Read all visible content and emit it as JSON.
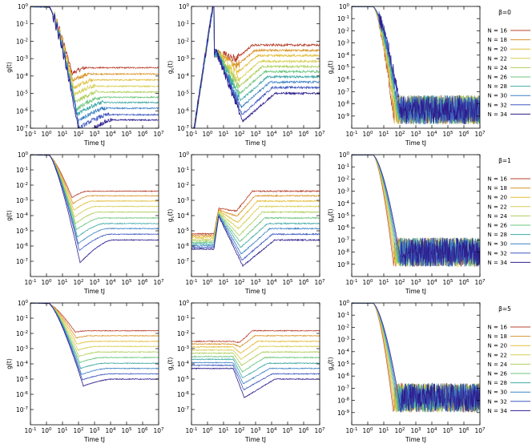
{
  "chart_data": {
    "type": "line",
    "x_scale": "log",
    "y_scale": "log",
    "xlim": [
      0.1,
      10000000
    ],
    "x_ticks": [
      "10^-1",
      "10^0",
      "10^1",
      "10^2",
      "10^3",
      "10^4",
      "10^5",
      "10^6",
      "10^7"
    ],
    "y_ticks_top": [
      "10^0",
      "10^-1",
      "10^-2",
      "10^-3",
      "10^-4",
      "10^-5",
      "10^-6",
      "10^-7"
    ],
    "y_ticks_c": [
      "10^0",
      "10^-1",
      "10^-2",
      "10^-3",
      "10^-4",
      "10^-5",
      "10^-6",
      "10^-7",
      "10^-8",
      "10^-9"
    ],
    "xlabel": "Time tJ",
    "ylabels": [
      "g(t)",
      "g_c(t)",
      "g_d(t)"
    ],
    "legend_entries": [
      "N = 16",
      "N = 18",
      "N = 20",
      "N = 22",
      "N = 24",
      "N = 26",
      "N = 28",
      "N = 30",
      "N = 32",
      "N = 34"
    ],
    "N": [
      16,
      18,
      20,
      22,
      24,
      26,
      28,
      30,
      32,
      34
    ],
    "colors": [
      "#b8402e",
      "#d8932a",
      "#e2bd3a",
      "#d6cf55",
      "#aecf5c",
      "#6cc57e",
      "#3fa9a6",
      "#3d82c6",
      "#3f58c0",
      "#2d1d8c"
    ],
    "rows": [
      {
        "beta_label": "β=0",
        "panels": [
          {
            "ylabel": "g(t)",
            "ylim": [
              1e-07,
              1
            ],
            "plateau": [
              0.0003,
              0.00013,
              6e-05,
              2.6e-05,
              1.2e-05,
              6e-06,
              3e-06,
              1.4e-06,
              6e-07,
              3e-07
            ],
            "minimum": [
              0.00014,
              5e-05,
              2e-05,
              8e-06,
              3e-06,
              1.2e-06,
              6e-07,
              2.5e-07,
              1e-07,
              2.3e-08
            ]
          },
          {
            "ylabel": "g_c(t)",
            "ylim": [
              1e-07,
              1
            ],
            "plateau": [
              0.006,
              0.003,
              0.0015,
              0.0007,
              0.00035,
              0.00018,
              9e-05,
              4.5e-05,
              2.2e-05,
              1e-05
            ],
            "peak": [
              0.002,
              0.002,
              0.002,
              0.002,
              0.002,
              0.002,
              0.002,
              0.002,
              0.002,
              0.002
            ],
            "minimum": [
              0.001,
              0.0004,
              0.00016,
              6e-05,
              2.5e-05,
              1e-05,
              4e-06,
              1.6e-06,
              6e-07,
              2.5e-07
            ]
          },
          {
            "ylabel": "g_d(t)",
            "ylim": [
              1e-10,
              1
            ],
            "noise_floor": 1e-08
          }
        ]
      },
      {
        "beta_label": "β=1",
        "panels": [
          {
            "ylabel": "g(t)",
            "ylim": [
              1e-08,
              1
            ],
            "plateau": [
              0.004,
              0.002,
              0.0009,
              0.0004,
              0.00017,
              7e-05,
              3e-05,
              1.4e-05,
              6e-06,
              2.5e-06
            ],
            "minimum": [
              0.0015,
              0.0006,
              0.00022,
              8e-05,
              3e-05,
              1.2e-05,
              4e-06,
              1.4e-06,
              5e-07,
              8e-08
            ]
          },
          {
            "ylabel": "g_c(t)",
            "ylim": [
              1e-08,
              1
            ],
            "plateau": [
              0.004,
              0.002,
              0.0009,
              0.0004,
              0.00017,
              7e-05,
              3e-05,
              1.4e-05,
              6e-06,
              2.5e-06
            ],
            "peak": [
              0.0003,
              0.00024,
              0.0002,
              0.00017,
              0.00015,
              0.00013,
              0.00012,
              0.00011,
              0.0001,
              9e-05
            ],
            "minimum": [
              0.0002,
              9e-05,
              3.5e-05,
              1.4e-05,
              5e-06,
              2e-06,
              8e-07,
              3e-07,
              1.2e-07,
              5e-08
            ]
          },
          {
            "ylabel": "g_d(t)",
            "ylim": [
              1e-10,
              1
            ],
            "noise_floor": 3e-08
          }
        ]
      },
      {
        "beta_label": "β=5",
        "panels": [
          {
            "ylabel": "g(t)",
            "ylim": [
              1e-08,
              1
            ],
            "plateau": [
              0.015,
              0.007,
              0.003,
              0.0014,
              0.0006,
              0.00026,
              0.00011,
              5e-05,
              2.2e-05,
              1e-05
            ],
            "minimum": [
              0.012,
              0.005,
              0.002,
              0.0008,
              0.0003,
              0.00012,
              5e-05,
              2e-05,
              9e-06,
              3.5e-06
            ]
          },
          {
            "ylabel": "g_c(t)",
            "ylim": [
              1e-08,
              1
            ],
            "plateau": [
              0.015,
              0.007,
              0.003,
              0.0014,
              0.0006,
              0.00026,
              0.00011,
              5e-05,
              2.2e-05,
              1e-05
            ],
            "start": [
              0.003,
              0.002,
              0.0013,
              0.0008,
              0.0005,
              0.0003,
              0.0002,
              0.00012,
              8e-05,
              5e-05
            ],
            "minimum": [
              0.0025,
              0.0013,
              0.0005,
              0.0002,
              8e-05,
              3e-05,
              1.2e-05,
              5e-06,
              2e-06,
              6e-07
            ]
          },
          {
            "ylabel": "g_d(t)",
            "ylim": [
              1e-10,
              1
            ],
            "noise_floor": 5e-08
          }
        ]
      }
    ]
  }
}
